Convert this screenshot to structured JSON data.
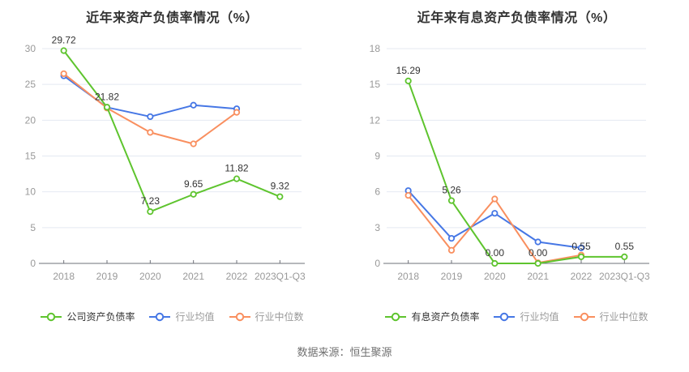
{
  "page": {
    "background": "#ffffff",
    "source_text": "数据来源：恒生聚源"
  },
  "chart_data": [
    {
      "type": "line",
      "title": "近年来资产负债率情况（%）",
      "categories": [
        "2018",
        "2019",
        "2020",
        "2021",
        "2022",
        "2023Q1-Q3"
      ],
      "ylim": [
        0,
        30
      ],
      "yticks": [
        0,
        5,
        10,
        15,
        20,
        25,
        30
      ],
      "grid": true,
      "legend_position": "bottom",
      "series": [
        {
          "name": "公司资产负债率",
          "color": "#5ec42e",
          "emphasized": true,
          "values": [
            29.72,
            21.82,
            7.23,
            9.65,
            11.82,
            9.32
          ],
          "labels": [
            "29.72",
            "21.82",
            "7.23",
            "9.65",
            "11.82",
            "9.32"
          ]
        },
        {
          "name": "行业均值",
          "color": "#4677e5",
          "emphasized": false,
          "values": [
            26.2,
            21.8,
            20.5,
            22.1,
            21.6,
            null
          ],
          "labels": null
        },
        {
          "name": "行业中位数",
          "color": "#f98f5f",
          "emphasized": false,
          "values": [
            26.5,
            21.7,
            18.3,
            16.7,
            21.1,
            null
          ],
          "labels": null
        }
      ]
    },
    {
      "type": "line",
      "title": "近年来有息资产负债率情况（%）",
      "categories": [
        "2018",
        "2019",
        "2020",
        "2021",
        "2022",
        "2023Q1-Q3"
      ],
      "ylim": [
        0,
        18
      ],
      "yticks": [
        0,
        3,
        6,
        9,
        12,
        15,
        18
      ],
      "grid": true,
      "legend_position": "bottom",
      "series": [
        {
          "name": "有息资产负债率",
          "color": "#5ec42e",
          "emphasized": true,
          "values": [
            15.29,
            5.26,
            0.0,
            0.0,
            0.55,
            0.55
          ],
          "labels": [
            "15.29",
            "5.26",
            "0.00",
            "0.00",
            "0.55",
            "0.55"
          ]
        },
        {
          "name": "行业均值",
          "color": "#4677e5",
          "emphasized": false,
          "values": [
            6.1,
            2.1,
            4.2,
            1.8,
            1.3,
            null
          ],
          "labels": null
        },
        {
          "name": "行业中位数",
          "color": "#f98f5f",
          "emphasized": false,
          "values": [
            5.7,
            1.1,
            5.4,
            0.05,
            0.7,
            null
          ],
          "labels": null
        }
      ]
    }
  ],
  "style": {
    "grid_line_color": "#e4e9f2",
    "axis_line_color": "#6e7079",
    "axis_label_color": "#999999",
    "data_label_color": "#333333"
  }
}
